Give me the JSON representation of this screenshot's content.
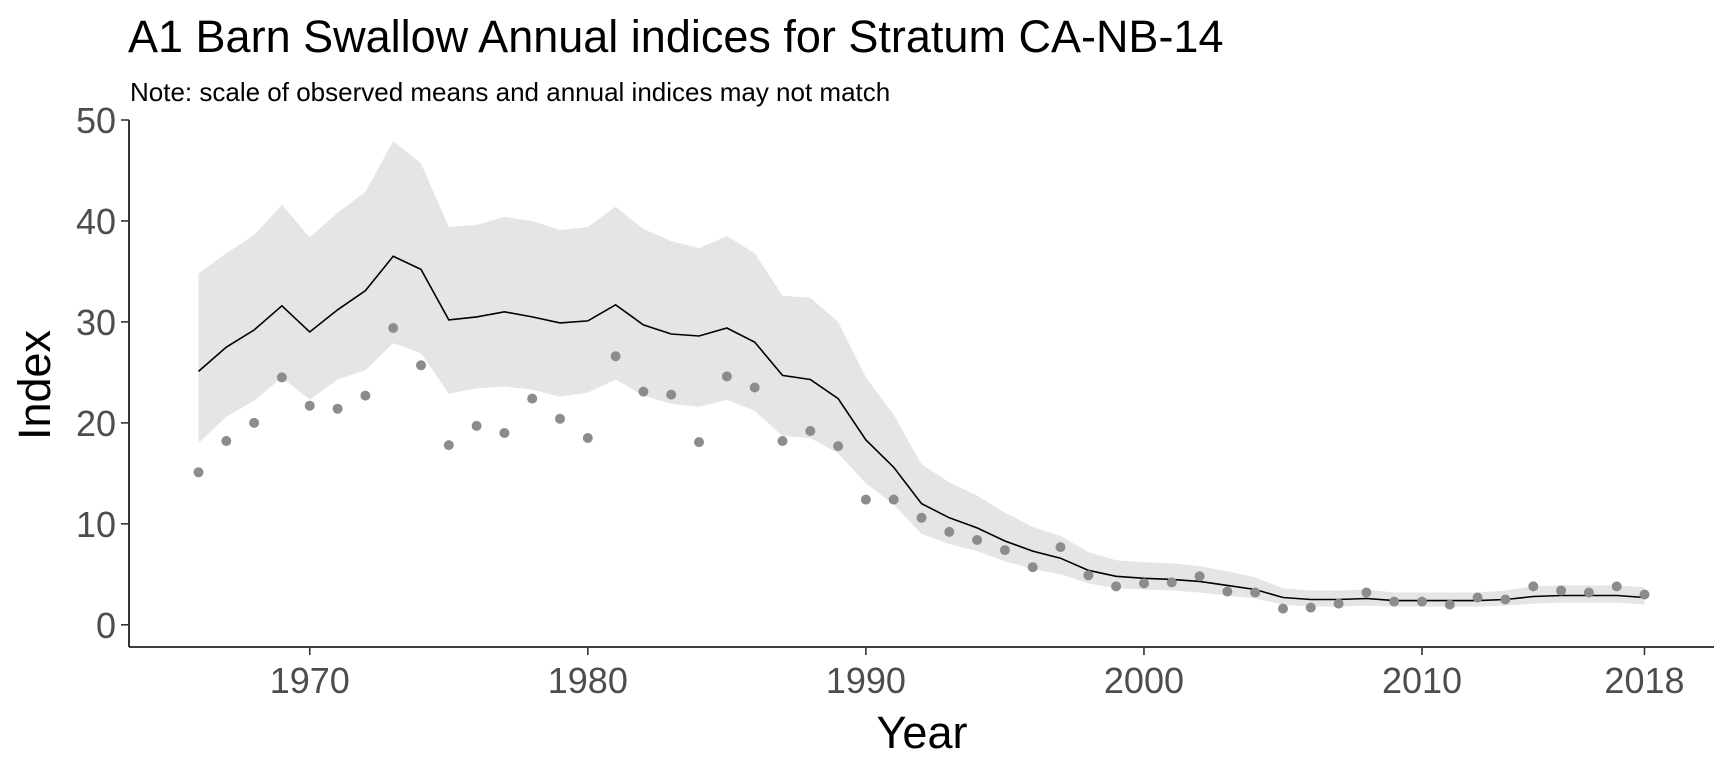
{
  "chart_data": {
    "type": "line",
    "title": "A1 Barn Swallow Annual indices for Stratum CA-NB-14",
    "subtitle": "Note: scale of observed means and annual indices may not match",
    "xlabel": "Year",
    "ylabel": "Index",
    "xlim": [
      1963.5,
      2020.5
    ],
    "ylim": [
      -2.2,
      50
    ],
    "x_ticks": [
      1970,
      1980,
      1990,
      2000,
      2010,
      2018
    ],
    "y_ticks": [
      0,
      10,
      20,
      30,
      40,
      50
    ],
    "grid": false,
    "legend": "none",
    "colors": {
      "line": "#000000",
      "band": "#e5e5e5",
      "points": "#8c8c8c"
    },
    "series": [
      {
        "role": "annual-index-line",
        "x": [
          1966,
          1967,
          1968,
          1969,
          1970,
          1971,
          1972,
          1973,
          1974,
          1975,
          1976,
          1977,
          1978,
          1979,
          1980,
          1981,
          1982,
          1983,
          1984,
          1985,
          1986,
          1987,
          1988,
          1989,
          1990,
          1991,
          1992,
          1993,
          1994,
          1995,
          1996,
          1997,
          1998,
          1999,
          2000,
          2001,
          2002,
          2003,
          2004,
          2005,
          2006,
          2007,
          2008,
          2009,
          2010,
          2011,
          2012,
          2013,
          2014,
          2015,
          2016,
          2017,
          2018
        ],
        "values": [
          25.1,
          27.5,
          29.2,
          31.6,
          29.0,
          31.2,
          33.1,
          36.5,
          35.2,
          30.2,
          30.5,
          31.0,
          30.5,
          29.9,
          30.1,
          31.7,
          29.7,
          28.8,
          28.6,
          29.4,
          28.0,
          24.7,
          24.3,
          22.4,
          18.3,
          15.6,
          12.0,
          10.6,
          9.6,
          8.3,
          7.3,
          6.6,
          5.4,
          4.8,
          4.6,
          4.5,
          4.3,
          3.9,
          3.5,
          2.7,
          2.5,
          2.5,
          2.6,
          2.4,
          2.4,
          2.4,
          2.4,
          2.5,
          2.8,
          2.9,
          2.9,
          2.9,
          2.7
        ],
        "lower": [
          18.0,
          20.6,
          22.2,
          24.5,
          22.3,
          24.3,
          25.2,
          27.9,
          26.9,
          22.9,
          23.4,
          23.6,
          23.3,
          22.6,
          23.0,
          24.3,
          22.7,
          21.9,
          21.6,
          22.3,
          21.2,
          18.7,
          18.5,
          17.0,
          14.0,
          11.9,
          9.0,
          8.0,
          7.3,
          6.3,
          5.5,
          5.0,
          4.1,
          3.6,
          3.5,
          3.4,
          3.2,
          2.9,
          2.6,
          2.0,
          1.8,
          1.8,
          1.9,
          1.8,
          1.8,
          1.8,
          1.8,
          1.9,
          2.1,
          2.2,
          2.2,
          2.2,
          2.0
        ],
        "upper": [
          34.8,
          36.8,
          38.6,
          41.6,
          38.4,
          40.8,
          42.9,
          47.9,
          45.7,
          39.4,
          39.6,
          40.4,
          40.0,
          39.1,
          39.4,
          41.4,
          39.2,
          38.0,
          37.3,
          38.5,
          36.8,
          32.6,
          32.4,
          30.0,
          24.5,
          20.8,
          15.9,
          14.1,
          12.8,
          11.1,
          9.7,
          8.8,
          7.2,
          6.4,
          6.2,
          6.1,
          5.8,
          5.3,
          4.7,
          3.6,
          3.4,
          3.4,
          3.5,
          3.2,
          3.2,
          3.2,
          3.2,
          3.4,
          3.8,
          3.9,
          3.9,
          3.9,
          3.7
        ]
      },
      {
        "role": "observed-means",
        "x": [
          1966,
          1967,
          1968,
          1969,
          1970,
          1971,
          1972,
          1973,
          1974,
          1975,
          1976,
          1977,
          1978,
          1979,
          1980,
          1981,
          1982,
          1983,
          1984,
          1985,
          1986,
          1987,
          1988,
          1989,
          1990,
          1991,
          1992,
          1993,
          1994,
          1995,
          1996,
          1997,
          1998,
          1999,
          2000,
          2001,
          2002,
          2003,
          2004,
          2005,
          2006,
          2007,
          2008,
          2009,
          2010,
          2011,
          2012,
          2013,
          2014,
          2015,
          2016,
          2017,
          2018
        ],
        "values": [
          15.1,
          18.2,
          20.0,
          24.5,
          21.7,
          21.4,
          22.7,
          29.4,
          25.7,
          17.8,
          19.7,
          19.0,
          22.4,
          20.4,
          18.5,
          26.6,
          23.1,
          22.8,
          18.1,
          24.6,
          23.5,
          18.2,
          19.2,
          17.7,
          12.4,
          12.4,
          10.6,
          9.2,
          8.4,
          7.4,
          5.7,
          7.7,
          4.9,
          3.8,
          4.1,
          4.2,
          4.8,
          3.3,
          3.2,
          1.6,
          1.7,
          2.1,
          3.2,
          2.3,
          2.3,
          2.0,
          2.7,
          2.5,
          3.8,
          3.4,
          3.2,
          3.8,
          3.0
        ]
      }
    ]
  }
}
